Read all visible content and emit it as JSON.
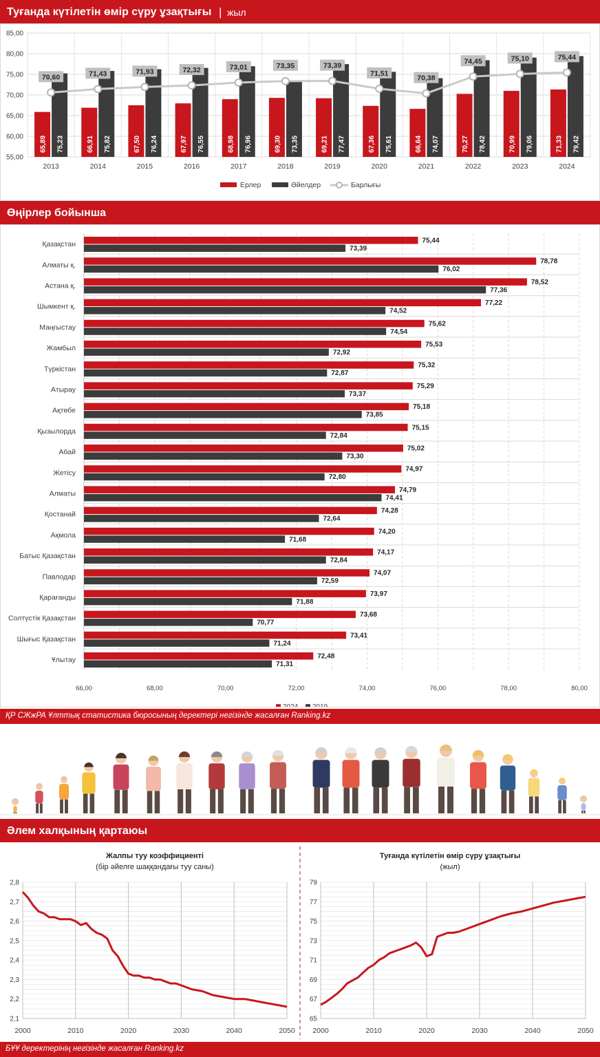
{
  "header": {
    "title": "Туғанда күтілетін өмір сүру ұзақтығы",
    "separator": "|",
    "unit": "жыл"
  },
  "regions_header": {
    "title": "Өңірлер бойынша"
  },
  "source_note": "ҚР СЖжРА Ұлттық статистика бюросының деректері негізінде жасалған Ranking.kz",
  "world_header": {
    "title": "Әлем халқының қартаюы"
  },
  "footer_note": "БҰҰ деректерінің негізінде жасалған Ranking.kz",
  "colors": {
    "red": "#c8161d",
    "dark": "#3c3c3c",
    "gray_line": "#c9c9c9",
    "label_box": "#bfbfbf"
  },
  "chart_data": [
    {
      "type": "bar",
      "categories": [
        "2013",
        "2014",
        "2015",
        "2016",
        "2017",
        "2018",
        "2019",
        "2020",
        "2021",
        "2022",
        "2023",
        "2024"
      ],
      "series": [
        {
          "name": "Ерлер",
          "values": [
            65.89,
            66.91,
            67.5,
            67.97,
            68.98,
            69.3,
            69.21,
            67.36,
            66.64,
            70.27,
            70.99,
            71.33
          ],
          "labels": [
            "65,89",
            "66,91",
            "67,50",
            "67,97",
            "68,98",
            "69,30",
            "69,21",
            "67,36",
            "66,64",
            "70,27",
            "70,99",
            "71,33"
          ],
          "color": "#c8161d"
        },
        {
          "name": "Әйелдер",
          "values": [
            75.23,
            75.82,
            76.24,
            76.55,
            76.96,
            73.35,
            77.47,
            75.61,
            74.07,
            78.42,
            79.06,
            79.42
          ],
          "labels": [
            "75,23",
            "75,82",
            "76,24",
            "76,55",
            "76,96",
            "73,35",
            "77,47",
            "75,61",
            "74,07",
            "78,42",
            "79,06",
            "79,42"
          ],
          "color": "#3c3c3c"
        },
        {
          "name": "Барлығы",
          "type": "line",
          "values": [
            70.6,
            71.43,
            71.93,
            72.32,
            73.01,
            73.35,
            73.39,
            71.51,
            70.38,
            74.45,
            75.1,
            75.44
          ],
          "labels": [
            "70,60",
            "71,43",
            "71,93",
            "72,32",
            "73,01",
            "73,35",
            "73,39",
            "71,51",
            "70,38",
            "74,45",
            "75,10",
            "75,44"
          ],
          "color": "#c9c9c9"
        }
      ],
      "ylim": [
        55,
        85
      ],
      "yticks": [
        "55,00",
        "60,00",
        "65,00",
        "70,00",
        "75,00",
        "80,00",
        "85,00"
      ],
      "grid": true,
      "legend": "bottom"
    },
    {
      "type": "bar",
      "orientation": "horizontal",
      "categories": [
        "Қазақстан",
        "Алматы қ.",
        "Астана қ.",
        "Шымкент қ.",
        "Маңғыстау",
        "Жамбыл",
        "Түркістан",
        "Атырау",
        "Ақтөбе",
        "Қызылорда",
        "Абай",
        "Жетісу",
        "Алматы",
        "Қостанай",
        "Ақмола",
        "Батыс Қазақстан",
        "Павлодар",
        "Қарағанды",
        "Солтүстік Қазақстан",
        "Шығыс Қазақстан",
        "Ұлытау"
      ],
      "series": [
        {
          "name": "2024",
          "values": [
            75.44,
            78.78,
            78.52,
            77.22,
            75.62,
            75.53,
            75.32,
            75.29,
            75.18,
            75.15,
            75.02,
            74.97,
            74.79,
            74.28,
            74.2,
            74.17,
            74.07,
            73.97,
            73.68,
            73.41,
            72.48
          ],
          "labels": [
            "75,44",
            "78,78",
            "78,52",
            "77,22",
            "75,62",
            "75,53",
            "75,32",
            "75,29",
            "75,18",
            "75,15",
            "75,02",
            "74,97",
            "74,79",
            "74,28",
            "74,20",
            "74,17",
            "74,07",
            "73,97",
            "73,68",
            "73,41",
            "72,48"
          ],
          "color": "#c8161d"
        },
        {
          "name": "2019",
          "values": [
            73.39,
            76.02,
            77.36,
            74.52,
            74.54,
            72.92,
            72.87,
            73.37,
            73.85,
            72.84,
            73.3,
            72.8,
            74.41,
            72.64,
            71.68,
            72.84,
            72.59,
            71.88,
            70.77,
            71.24,
            71.31
          ],
          "labels": [
            "73,39",
            "76,02",
            "77,36",
            "74,52",
            "74,54",
            "72,92",
            "72,87",
            "73,37",
            "73,85",
            "72,84",
            "73,30",
            "72,80",
            "74,41",
            "72,64",
            "71,68",
            "72,84",
            "72,59",
            "71,88",
            "70,77",
            "71,24",
            "71,31"
          ],
          "color": "#3c3c3c"
        }
      ],
      "xlim": [
        66,
        80
      ],
      "xticks": [
        "66,00",
        "68,00",
        "70,00",
        "72,00",
        "74,00",
        "76,00",
        "78,00",
        "80,00"
      ],
      "grid": true,
      "legend": "bottom"
    },
    {
      "type": "line",
      "title": "Жалпы туу коэффициенті",
      "subtitle": "(бір әйелге шаққандағы туу саны)",
      "x": [
        2000,
        2001,
        2002,
        2003,
        2004,
        2005,
        2006,
        2007,
        2008,
        2009,
        2010,
        2011,
        2012,
        2013,
        2014,
        2015,
        2016,
        2017,
        2018,
        2019,
        2020,
        2021,
        2022,
        2023,
        2024,
        2025,
        2026,
        2027,
        2028,
        2029,
        2030,
        2032,
        2034,
        2036,
        2038,
        2040,
        2042,
        2044,
        2046,
        2048,
        2050
      ],
      "y": [
        2.75,
        2.72,
        2.68,
        2.65,
        2.64,
        2.62,
        2.62,
        2.61,
        2.61,
        2.61,
        2.6,
        2.58,
        2.59,
        2.56,
        2.54,
        2.53,
        2.51,
        2.45,
        2.42,
        2.37,
        2.33,
        2.32,
        2.32,
        2.31,
        2.31,
        2.3,
        2.3,
        2.29,
        2.28,
        2.28,
        2.27,
        2.25,
        2.24,
        2.22,
        2.21,
        2.2,
        2.2,
        2.19,
        2.18,
        2.17,
        2.16
      ],
      "xlim": [
        2000,
        2050
      ],
      "ylim": [
        2.1,
        2.8
      ],
      "xticks": [
        "2000",
        "2010",
        "2020",
        "2030",
        "2040",
        "2050"
      ],
      "yticks": [
        "2,1",
        "2,2",
        "2,3",
        "2,4",
        "2,5",
        "2,6",
        "2,7",
        "2,8"
      ],
      "color": "#c8161d",
      "grid": true
    },
    {
      "type": "line",
      "title": "Туғанда күтілетін өмір сүру ұзақтығы",
      "subtitle": "(жыл)",
      "x": [
        2000,
        2001,
        2002,
        2003,
        2004,
        2005,
        2006,
        2007,
        2008,
        2009,
        2010,
        2011,
        2012,
        2013,
        2014,
        2015,
        2016,
        2017,
        2018,
        2019,
        2020,
        2021,
        2022,
        2023,
        2024,
        2025,
        2026,
        2028,
        2030,
        2032,
        2034,
        2036,
        2038,
        2040,
        2042,
        2044,
        2046,
        2048,
        2050
      ],
      "y": [
        66.4,
        66.7,
        67.1,
        67.5,
        68.0,
        68.6,
        68.9,
        69.2,
        69.7,
        70.2,
        70.5,
        71.0,
        71.3,
        71.7,
        71.9,
        72.1,
        72.3,
        72.5,
        72.8,
        72.3,
        71.4,
        71.6,
        73.4,
        73.6,
        73.8,
        73.8,
        73.9,
        74.3,
        74.7,
        75.1,
        75.5,
        75.8,
        76.0,
        76.3,
        76.6,
        76.9,
        77.1,
        77.3,
        77.5
      ],
      "xlim": [
        2000,
        2050
      ],
      "ylim": [
        65,
        79
      ],
      "xticks": [
        "2000",
        "2010",
        "2020",
        "2030",
        "2040",
        "2050"
      ],
      "yticks": [
        "65",
        "67",
        "69",
        "71",
        "73",
        "75",
        "77",
        "79"
      ],
      "color": "#c8161d",
      "grid": true
    }
  ]
}
